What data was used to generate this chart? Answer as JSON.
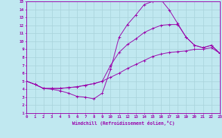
{
  "xlabel": "Windchill (Refroidissement éolien,°C)",
  "xlim": [
    0,
    23
  ],
  "ylim": [
    1,
    15
  ],
  "xticks": [
    0,
    1,
    2,
    3,
    4,
    5,
    6,
    7,
    8,
    9,
    10,
    11,
    12,
    13,
    14,
    15,
    16,
    17,
    18,
    19,
    20,
    21,
    22,
    23
  ],
  "yticks": [
    1,
    2,
    3,
    4,
    5,
    6,
    7,
    8,
    9,
    10,
    11,
    12,
    13,
    14,
    15
  ],
  "bg_color": "#c0e8f0",
  "grid_color": "#aad4dc",
  "line_color": "#9900aa",
  "line1_x": [
    0,
    1,
    2,
    3,
    4,
    5,
    6,
    7,
    8,
    9,
    10,
    11,
    12,
    13,
    14,
    15,
    16,
    17,
    18,
    19,
    20,
    21,
    22,
    23
  ],
  "line1_y": [
    5.0,
    4.6,
    4.1,
    4.1,
    4.1,
    4.2,
    4.3,
    4.5,
    4.7,
    5.0,
    5.5,
    6.0,
    6.6,
    7.1,
    7.6,
    8.1,
    8.4,
    8.6,
    8.7,
    8.8,
    9.0,
    9.0,
    9.2,
    8.5
  ],
  "line2_x": [
    0,
    1,
    2,
    3,
    4,
    5,
    6,
    7,
    8,
    9,
    10,
    11,
    12,
    13,
    14,
    15,
    16,
    17,
    18,
    19,
    20,
    21,
    22,
    23
  ],
  "line2_y": [
    5.0,
    4.6,
    4.1,
    4.1,
    4.1,
    4.2,
    4.3,
    4.5,
    4.7,
    5.0,
    7.0,
    8.6,
    9.6,
    10.3,
    11.1,
    11.6,
    12.0,
    12.1,
    12.1,
    10.5,
    9.5,
    9.2,
    9.5,
    8.5
  ],
  "line3_x": [
    0,
    1,
    2,
    3,
    4,
    5,
    6,
    7,
    8,
    9,
    10,
    11,
    12,
    13,
    14,
    15,
    16,
    17,
    18,
    19,
    20,
    21,
    22,
    23
  ],
  "line3_y": [
    5.0,
    4.6,
    4.1,
    4.0,
    3.8,
    3.5,
    3.1,
    3.0,
    2.8,
    3.5,
    6.5,
    10.5,
    12.1,
    13.3,
    14.6,
    15.0,
    15.2,
    13.9,
    12.2,
    10.5,
    9.5,
    9.2,
    9.5,
    8.5
  ],
  "figsize": [
    3.2,
    2.0
  ],
  "dpi": 100
}
